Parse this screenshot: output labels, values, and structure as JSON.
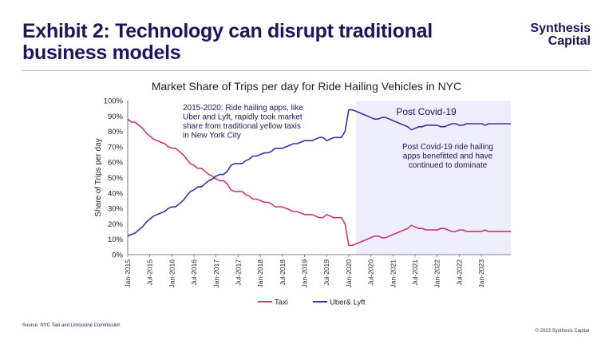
{
  "header": {
    "title": "Exhibit 2: Technology can disrupt traditional business models",
    "logo_line1": "Synthesis",
    "logo_line2": "Capital"
  },
  "footer": {
    "source": "Source: NYC Taxi and Limousine Commission",
    "copyright": "© 2023 Synthesis Capital"
  },
  "colors": {
    "taxi": "#d6336c",
    "uber": "#3d2fa3",
    "shade": "#eeedfb",
    "navy": "#22145c"
  },
  "chart_data": {
    "type": "line",
    "title": "Market Share of Trips per day for Ride Hailing Vehicles in NYC",
    "ylabel": "Share of Trips per day",
    "xlabel": "",
    "ylim": [
      0,
      100
    ],
    "yticks": [
      "0%",
      "10%",
      "20%",
      "30%",
      "40%",
      "50%",
      "60%",
      "70%",
      "80%",
      "90%",
      "100%"
    ],
    "xticks": [
      "Jan-2015",
      "Jul-2015",
      "Jan-2016",
      "Jul-2016",
      "Jan-2017",
      "Jul-2017",
      "Jan-2018",
      "Jul-2018",
      "Jan-2019",
      "Jul-2019",
      "Jan-2020",
      "Jul-2020",
      "Jan-2021",
      "Jul-2021",
      "Jan-2022",
      "Jul-2022",
      "Jan-2023"
    ],
    "x_start": "Jan-2015",
    "x_end": "Sep-2023",
    "shaded_from": "Mar-2020",
    "legend": "bottom",
    "series": [
      {
        "name": "Taxi",
        "values": [
          88,
          86,
          86,
          84,
          82,
          79,
          77,
          75,
          74,
          73,
          72,
          70,
          69,
          69,
          67,
          65,
          62,
          59,
          58,
          56,
          56,
          54,
          52,
          51,
          49,
          48,
          48,
          46,
          42,
          41,
          41,
          41,
          39,
          38,
          36,
          36,
          35,
          34,
          34,
          33,
          31,
          31,
          31,
          30,
          29,
          28,
          28,
          27,
          26,
          26,
          26,
          25,
          24,
          24,
          26,
          25,
          24,
          24,
          24,
          20,
          6,
          6,
          7,
          8,
          9,
          10,
          11,
          12,
          12,
          11,
          11,
          12,
          13,
          14,
          15,
          16,
          17,
          19,
          18,
          17,
          17,
          16,
          16,
          16,
          16,
          17,
          17,
          16,
          15,
          15,
          16,
          16,
          15,
          15,
          15,
          15,
          15,
          16,
          15,
          15,
          15,
          15,
          15,
          15,
          15
        ]
      },
      {
        "name": "Uber& Lyft",
        "values": [
          12,
          13,
          14,
          16,
          18,
          21,
          23,
          25,
          26,
          27,
          28,
          30,
          31,
          31,
          33,
          35,
          38,
          41,
          42,
          44,
          44,
          46,
          48,
          49,
          51,
          52,
          52,
          54,
          58,
          59,
          59,
          59,
          61,
          62,
          64,
          64,
          65,
          66,
          66,
          67,
          69,
          69,
          69,
          70,
          71,
          72,
          72,
          73,
          74,
          74,
          74,
          75,
          76,
          76,
          74,
          75,
          76,
          76,
          76,
          80,
          94,
          94,
          93,
          92,
          91,
          90,
          89,
          88,
          88,
          89,
          89,
          88,
          87,
          86,
          85,
          84,
          83,
          81,
          82,
          83,
          83,
          84,
          84,
          84,
          84,
          83,
          83,
          84,
          85,
          85,
          84,
          84,
          85,
          85,
          85,
          85,
          85,
          84,
          85,
          85,
          85,
          85,
          85,
          85,
          85
        ]
      }
    ],
    "annotations": [
      {
        "name": "pre-covid-note",
        "lines": [
          "2015-2020: Ride hailing apps, like",
          "Uber and Lyft, rapidly took market",
          "share from traditional yellow taxis",
          "in New York City"
        ]
      },
      {
        "name": "post-covid-label",
        "lines": [
          "Post Covid-19"
        ]
      },
      {
        "name": "post-covid-note",
        "lines": [
          "Post Covid-19 ride hailing",
          "apps benefitted and have",
          "continued to dominate"
        ]
      }
    ]
  }
}
